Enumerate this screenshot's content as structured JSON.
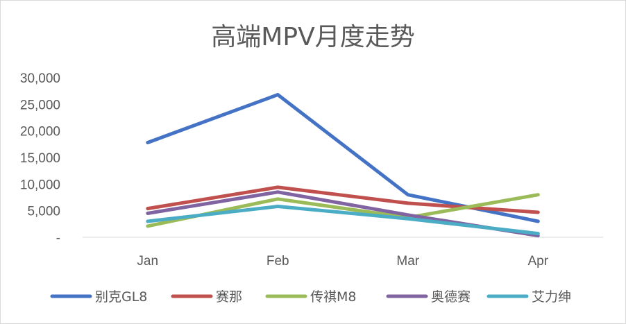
{
  "chart_data": {
    "type": "line",
    "title": "高端MPV月度走势",
    "xlabel": "",
    "ylabel": "",
    "categories": [
      "Jan",
      "Feb",
      "Mar",
      "Apr"
    ],
    "ylim": [
      0,
      30000
    ],
    "yticks": [
      0,
      5000,
      10000,
      15000,
      20000,
      25000,
      30000
    ],
    "ytick_labels": [
      "-",
      "5,000",
      "10,000",
      "15,000",
      "20,000",
      "25,000",
      "30,000"
    ],
    "grid": false,
    "legend": "bottom",
    "series": [
      {
        "name": "别克GL8",
        "color": "#4472c4",
        "values": [
          17800,
          26800,
          8000,
          3000
        ]
      },
      {
        "name": "赛那",
        "color": "#c0504d",
        "values": [
          5400,
          9400,
          6400,
          4700
        ]
      },
      {
        "name": "传祺M8",
        "color": "#9bbb59",
        "values": [
          2100,
          7200,
          3700,
          8000
        ]
      },
      {
        "name": "奥德赛",
        "color": "#8064a2",
        "values": [
          4500,
          8500,
          4200,
          300
        ]
      },
      {
        "name": "艾力绅",
        "color": "#4bacc6",
        "values": [
          3000,
          5800,
          3500,
          700
        ]
      }
    ]
  }
}
